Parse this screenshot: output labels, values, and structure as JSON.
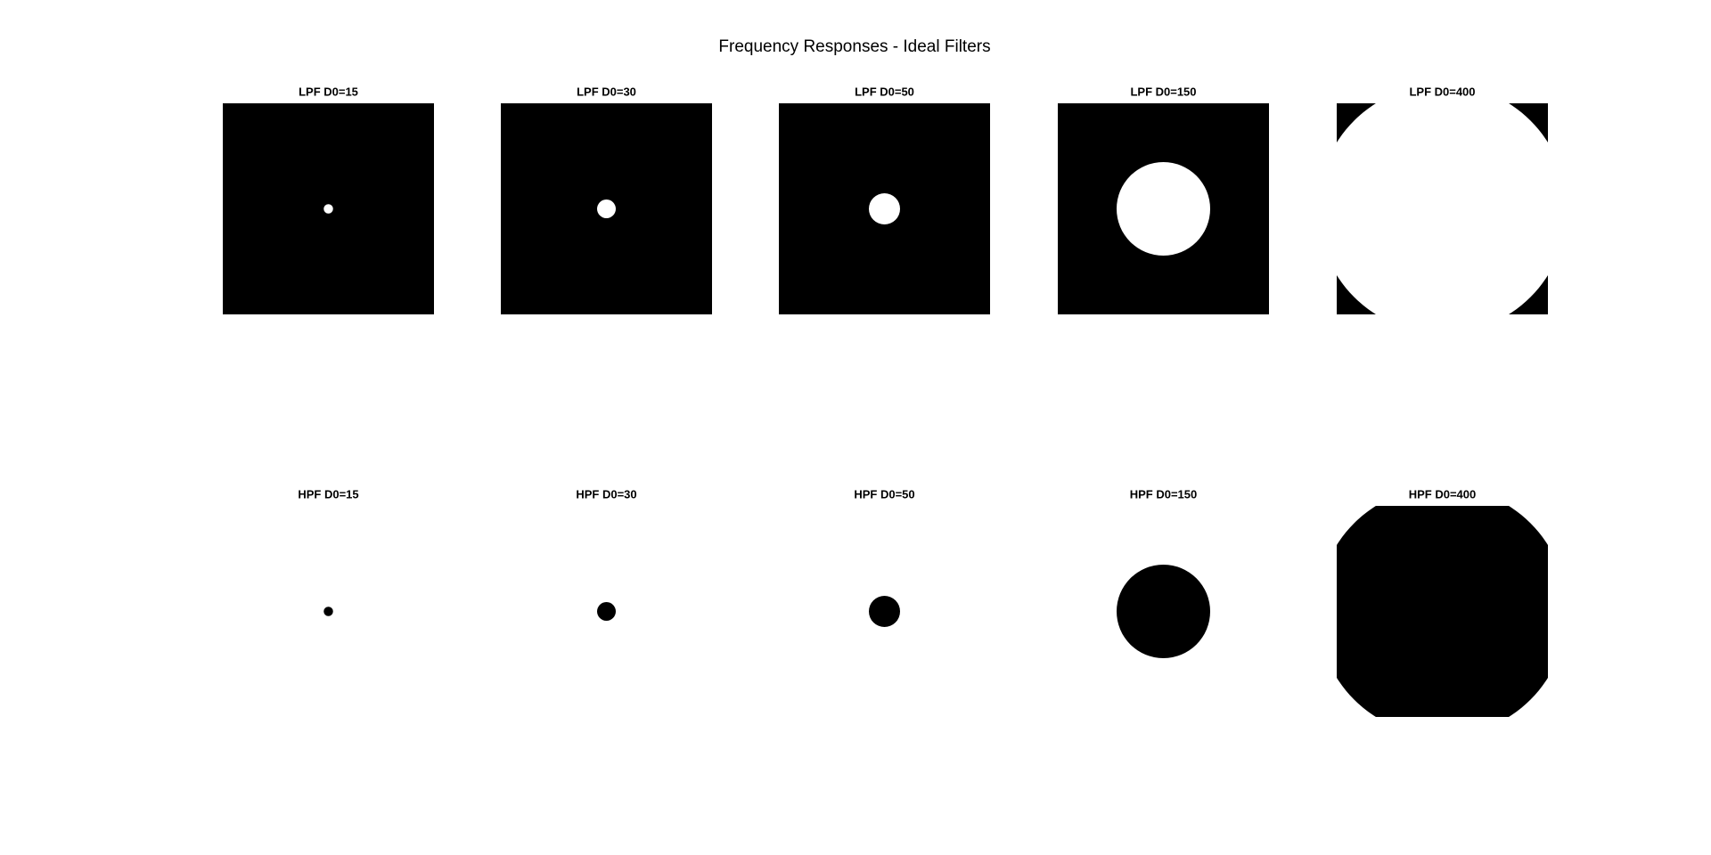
{
  "title": "Frequency Responses - Ideal Filters",
  "panels": [
    {
      "label": "LPF D0=15",
      "type": "LPF",
      "d0": 15
    },
    {
      "label": "LPF D0=30",
      "type": "LPF",
      "d0": 30
    },
    {
      "label": "LPF D0=50",
      "type": "LPF",
      "d0": 50
    },
    {
      "label": "LPF D0=150",
      "type": "LPF",
      "d0": 150
    },
    {
      "label": "LPF D0=400",
      "type": "LPF",
      "d0": 400
    },
    {
      "label": "HPF D0=15",
      "type": "HPF",
      "d0": 15
    },
    {
      "label": "HPF D0=30",
      "type": "HPF",
      "d0": 30
    },
    {
      "label": "HPF D0=50",
      "type": "HPF",
      "d0": 50
    },
    {
      "label": "HPF D0=150",
      "type": "HPF",
      "d0": 150
    },
    {
      "label": "HPF D0=400",
      "type": "HPF",
      "d0": 400
    }
  ]
}
